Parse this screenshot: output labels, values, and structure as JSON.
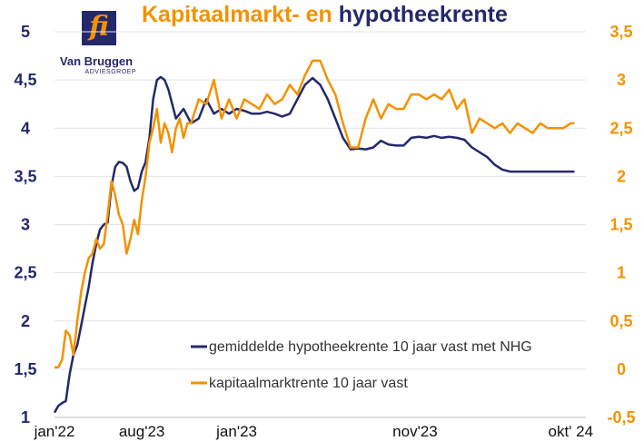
{
  "header": {
    "title_part1": "Kapitaalmarkt- en ",
    "title_part2": "hypotheekrente",
    "logo_name": "Van Bruggen",
    "logo_sub": "ADVIESGROEP",
    "logo_glyph": "fi"
  },
  "colors": {
    "navy": "#24286b",
    "orange": "#f39200"
  },
  "chart_data": {
    "type": "line",
    "title": "Kapitaalmarkt- en hypotheekrente",
    "x_tick_labels": [
      "jan'22",
      "aug'23",
      "jan'23",
      "nov'23",
      "okt' 24"
    ],
    "x_tick_positions": [
      0,
      23,
      48,
      95,
      136
    ],
    "x_range": [
      0,
      140
    ],
    "y_left": {
      "range": [
        1,
        5
      ],
      "ticks": [
        "1",
        "1,5",
        "2",
        "2,5",
        "3",
        "3,5",
        "4",
        "4,5",
        "5"
      ],
      "tick_values": [
        1,
        1.5,
        2,
        2.5,
        3,
        3.5,
        4,
        4.5,
        5
      ]
    },
    "y_right": {
      "range": [
        -0.5,
        3.5
      ],
      "ticks": [
        "-0,5",
        "0",
        "0,5",
        "1",
        "1,5",
        "2",
        "2,5",
        "3",
        "3,5"
      ],
      "tick_values": [
        -0.5,
        0,
        0.5,
        1,
        1.5,
        2,
        2.5,
        3,
        3.5
      ]
    },
    "grid": "horizontal",
    "legend_position": "bottom-right",
    "series": [
      {
        "name": "gemiddelde hypotheekrente 10 jaar vast met NHG",
        "axis": "left",
        "color": "#24286b",
        "x": [
          0,
          1,
          2,
          3,
          4,
          5,
          6,
          7,
          8,
          9,
          10,
          11,
          12,
          13,
          14,
          15,
          16,
          17,
          18,
          19,
          20,
          21,
          22,
          23,
          24,
          25,
          26,
          27,
          28,
          29,
          30,
          32,
          34,
          36,
          38,
          40,
          42,
          44,
          46,
          48,
          50,
          52,
          54,
          56,
          58,
          60,
          62,
          64,
          66,
          68,
          70,
          72,
          74,
          76,
          78,
          80,
          82,
          84,
          86,
          88,
          90,
          92,
          94,
          96,
          98,
          100,
          102,
          104,
          106,
          108,
          110,
          112,
          114,
          116,
          118,
          120,
          122,
          124,
          126,
          128,
          130,
          132,
          134,
          136,
          137
        ],
        "values": [
          1.05,
          1.12,
          1.15,
          1.17,
          1.45,
          1.65,
          1.75,
          1.95,
          2.15,
          2.35,
          2.6,
          2.8,
          2.95,
          3.0,
          3.02,
          3.4,
          3.6,
          3.65,
          3.64,
          3.6,
          3.45,
          3.35,
          3.38,
          3.55,
          3.65,
          3.9,
          4.3,
          4.5,
          4.53,
          4.5,
          4.4,
          4.1,
          4.2,
          4.05,
          4.1,
          4.3,
          4.15,
          4.2,
          4.15,
          4.2,
          4.18,
          4.15,
          4.15,
          4.17,
          4.15,
          4.12,
          4.15,
          4.3,
          4.45,
          4.52,
          4.45,
          4.3,
          4.1,
          3.9,
          3.78,
          3.79,
          3.78,
          3.8,
          3.87,
          3.83,
          3.82,
          3.82,
          3.9,
          3.91,
          3.9,
          3.92,
          3.9,
          3.91,
          3.9,
          3.88,
          3.8,
          3.75,
          3.7,
          3.62,
          3.57,
          3.55,
          3.55,
          3.55,
          3.55,
          3.55,
          3.55,
          3.55,
          3.55,
          3.55,
          3.55
        ]
      },
      {
        "name": "kapitaalmarktrente 10 jaar vast",
        "axis": "right",
        "color": "#f39200",
        "x": [
          0,
          1,
          2,
          3,
          4,
          5,
          6,
          7,
          8,
          9,
          10,
          11,
          12,
          13,
          14,
          15,
          16,
          17,
          18,
          19,
          20,
          21,
          22,
          23,
          24,
          25,
          26,
          27,
          28,
          29,
          30,
          31,
          32,
          33,
          34,
          35,
          36,
          38,
          40,
          42,
          44,
          46,
          48,
          50,
          52,
          54,
          56,
          58,
          60,
          62,
          64,
          66,
          68,
          70,
          72,
          74,
          76,
          78,
          80,
          82,
          84,
          86,
          88,
          90,
          92,
          94,
          96,
          98,
          100,
          102,
          104,
          106,
          108,
          110,
          112,
          114,
          116,
          118,
          120,
          122,
          124,
          126,
          128,
          130,
          132,
          134,
          136,
          137
        ],
        "values": [
          0.02,
          0.02,
          0.1,
          0.4,
          0.35,
          0.15,
          0.5,
          0.8,
          1.0,
          1.15,
          1.2,
          1.35,
          1.25,
          1.3,
          1.6,
          1.95,
          1.8,
          1.6,
          1.5,
          1.2,
          1.35,
          1.55,
          1.4,
          1.75,
          2.0,
          2.35,
          2.5,
          2.7,
          2.35,
          2.55,
          2.45,
          2.25,
          2.5,
          2.6,
          2.4,
          2.55,
          2.55,
          2.8,
          2.75,
          3.0,
          2.6,
          2.8,
          2.6,
          2.8,
          2.75,
          2.7,
          2.85,
          2.75,
          2.8,
          2.95,
          2.85,
          3.05,
          3.2,
          3.2,
          3.0,
          2.85,
          2.55,
          2.3,
          2.3,
          2.6,
          2.8,
          2.6,
          2.75,
          2.7,
          2.7,
          2.85,
          2.85,
          2.8,
          2.85,
          2.8,
          2.9,
          2.7,
          2.8,
          2.45,
          2.6,
          2.55,
          2.5,
          2.55,
          2.45,
          2.55,
          2.5,
          2.45,
          2.55,
          2.5,
          2.5,
          2.5,
          2.55,
          2.55
        ]
      }
    ]
  }
}
